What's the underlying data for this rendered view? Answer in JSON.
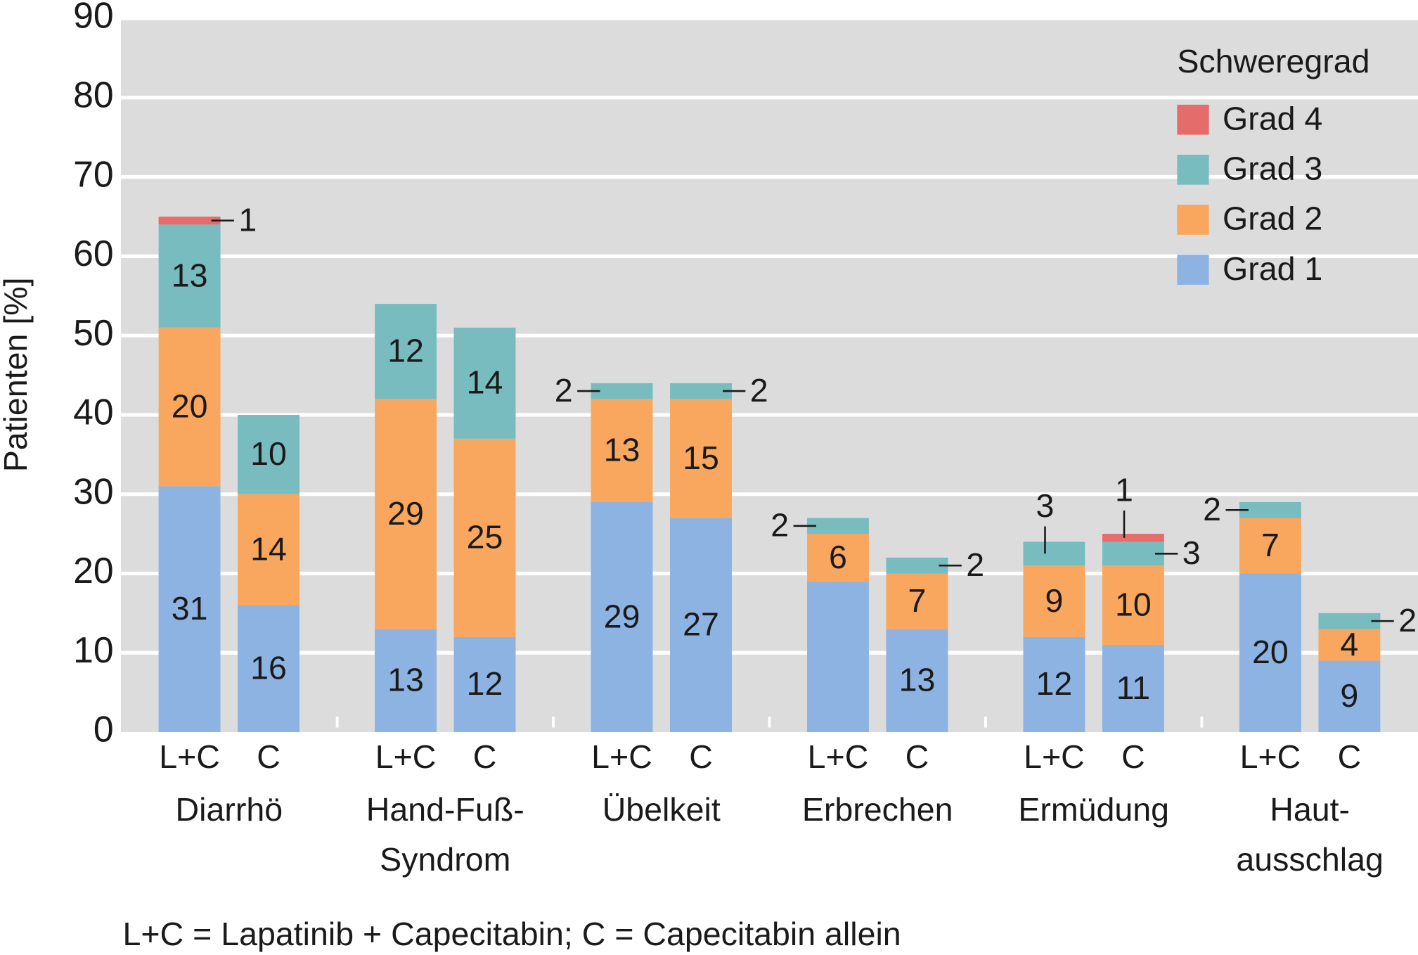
{
  "chart_data": {
    "type": "stacked_bar",
    "ylabel": "Patienten [%]",
    "groups": [
      [
        "Diarrhö"
      ],
      [
        "Hand-Fuß-",
        "Syndrom"
      ],
      [
        "Übelkeit"
      ],
      [
        "Erbrechen"
      ],
      [
        "Ermüdung"
      ],
      [
        "Haut-",
        "ausschlag"
      ]
    ],
    "categories": [
      "L+C",
      "C",
      "L+C",
      "C",
      "L+C",
      "C",
      "L+C",
      "C",
      "L+C",
      "C",
      "L+C",
      "C"
    ],
    "series": [
      {
        "name": "Grad 1",
        "color": "#8db3e2",
        "values": [
          31,
          16,
          13,
          12,
          29,
          27,
          19,
          13,
          12,
          11,
          20,
          9
        ],
        "value_labels": [
          "31",
          "16",
          "13",
          "12",
          "29",
          "27",
          null,
          "13",
          "12",
          "11",
          "20",
          "9"
        ]
      },
      {
        "name": "Grad 2",
        "color": "#f9a75e",
        "values": [
          20,
          14,
          29,
          25,
          13,
          15,
          6,
          7,
          9,
          10,
          7,
          4
        ],
        "value_labels": [
          "20",
          "14",
          "29",
          "25",
          "13",
          "15",
          "6",
          "7",
          "9",
          "10",
          "7",
          "4"
        ]
      },
      {
        "name": "Grad 3",
        "color": "#79bcc0",
        "values": [
          13,
          10,
          12,
          14,
          2,
          2,
          2,
          2,
          3,
          3,
          2,
          2
        ],
        "value_labels": [
          "13",
          "10",
          "12",
          "14",
          "2",
          "2",
          "2",
          "2",
          "3",
          "3",
          "2",
          "2"
        ]
      },
      {
        "name": "Grad 4",
        "color": "#e46c6a",
        "values": [
          1,
          null,
          null,
          null,
          null,
          null,
          null,
          null,
          null,
          1,
          null,
          null
        ],
        "value_labels": [
          "1",
          null,
          null,
          null,
          null,
          null,
          null,
          null,
          null,
          "1",
          null,
          null
        ]
      }
    ],
    "legend_title": "Schweregrad",
    "legend": "upper right",
    "ylim": [
      0,
      90
    ],
    "yticks": [
      0,
      10,
      20,
      30,
      40,
      50,
      60,
      70,
      80,
      90
    ],
    "grid": true,
    "footnote": "L+C = Lapatinib + Capecitabin; C = Capecitabin allein"
  }
}
